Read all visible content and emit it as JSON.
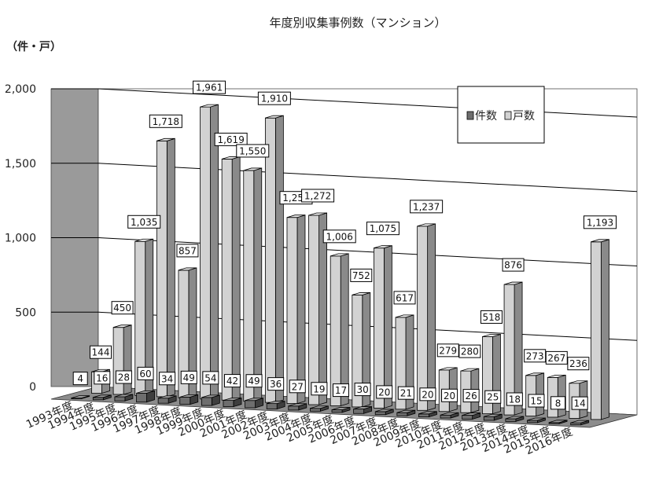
{
  "chart_data": {
    "type": "bar",
    "title": "年度別収集事例数（マンション）",
    "unit_label": "（件・戸）",
    "ylim": [
      0,
      2000
    ],
    "yticks": [
      0,
      500,
      1000,
      1500,
      2000
    ],
    "ytick_labels": [
      "0",
      "500",
      "1,000",
      "1,500",
      "2,000"
    ],
    "categories": [
      "1993年度",
      "1994年度",
      "1995年度",
      "1996年度",
      "1997年度",
      "1998年度",
      "1999年度",
      "2000年度",
      "2001年度",
      "2002年度",
      "2003年度",
      "2004年度",
      "2005年度",
      "2006年度",
      "2007年度",
      "2008年度",
      "2009年度",
      "2010年度",
      "2011年度",
      "2012年度",
      "2013年度",
      "2014年度",
      "2015年度",
      "2016年度"
    ],
    "series": [
      {
        "name": "件数",
        "color": "#6e6e6e",
        "values": [
          4,
          16,
          28,
          60,
          34,
          49,
          54,
          42,
          49,
          36,
          27,
          19,
          17,
          30,
          20,
          21,
          20,
          20,
          26,
          25,
          18,
          15,
          8,
          14
        ],
        "labels": [
          "4",
          "16",
          "28",
          "60",
          "34",
          "49",
          "54",
          "42",
          "49",
          "36",
          "27",
          "19",
          "17",
          "30",
          "20",
          "21",
          "20",
          "20",
          "26",
          "25",
          "18",
          "15",
          "8",
          "14"
        ]
      },
      {
        "name": "戸数",
        "color": "#d2d2d2",
        "values": [
          144,
          450,
          1035,
          1718,
          857,
          1961,
          1619,
          1550,
          1910,
          1250,
          1272,
          1006,
          752,
          1075,
          617,
          1237,
          279,
          280,
          518,
          876,
          273,
          267,
          236,
          1193
        ],
        "labels": [
          "144",
          "450",
          "1,035",
          "1,718",
          "857",
          "1,961",
          "1,619",
          "1,550",
          "1,910",
          "1,250",
          "1,272",
          "1,006",
          "752",
          "1,075",
          "617",
          "1,237",
          "279",
          "280",
          "518",
          "876",
          "273",
          "267",
          "236",
          "1,193"
        ]
      }
    ],
    "grid": true,
    "legend_position": "top-right"
  }
}
